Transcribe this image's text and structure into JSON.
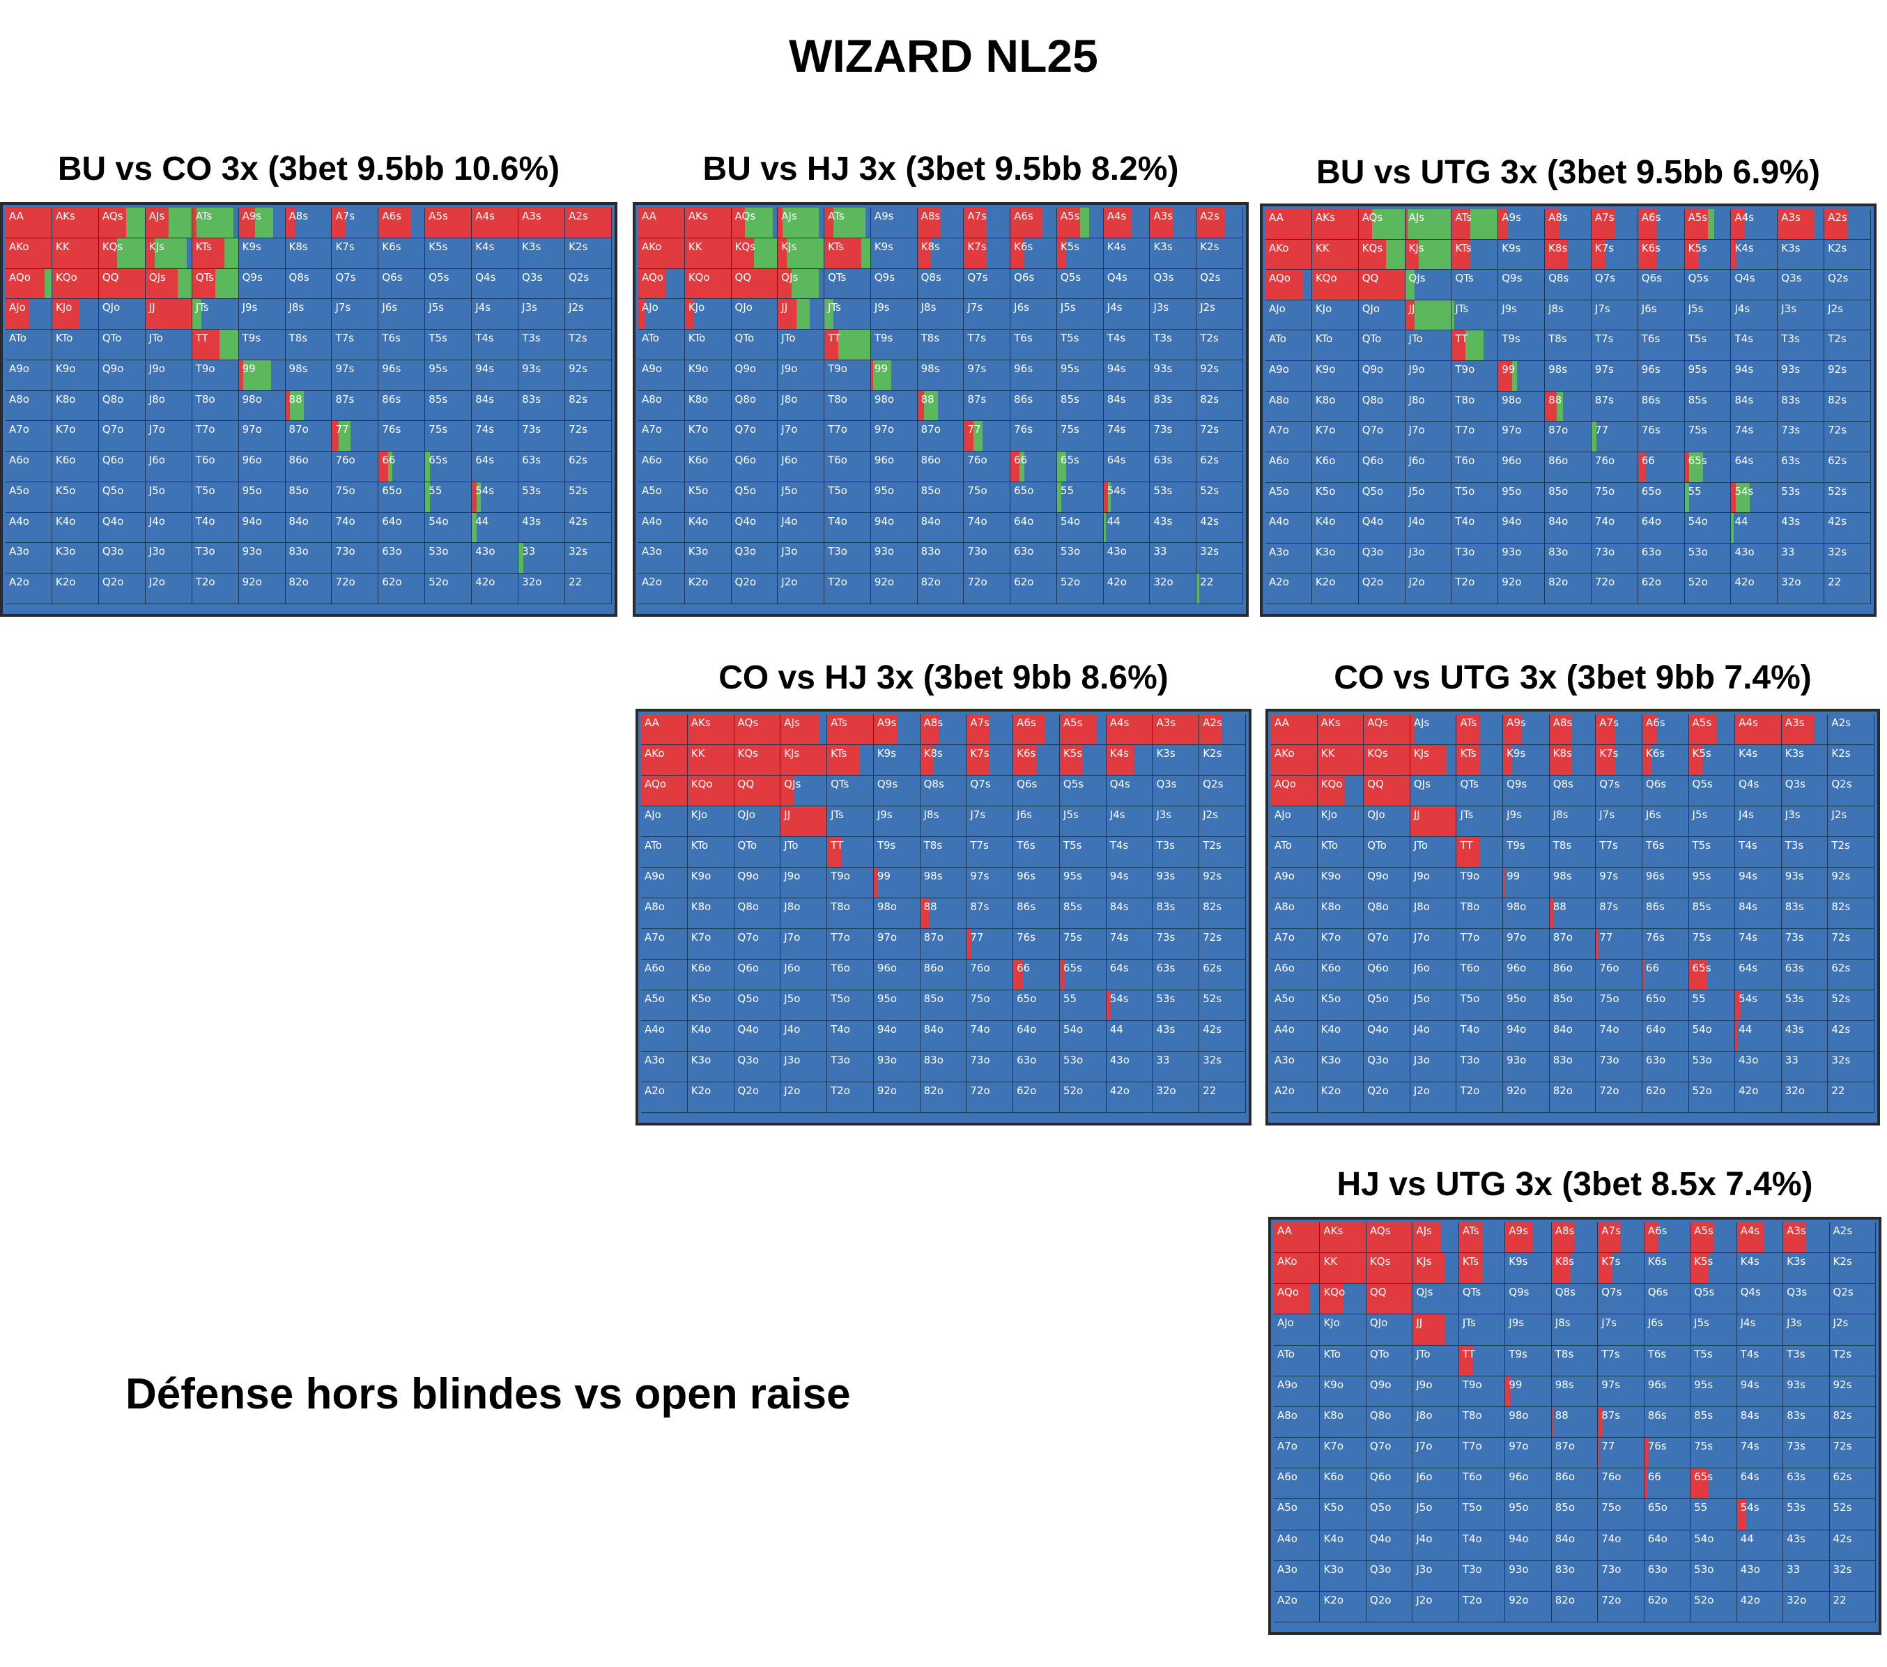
{
  "title": "WIZARD NL25",
  "subtitle": "Défense hors blindes vs open raise",
  "colors": {
    "raise": "#e23b3f",
    "call": "#5cb85c",
    "fold": "#3e74b5"
  },
  "ranks": [
    "A",
    "K",
    "Q",
    "J",
    "T",
    "9",
    "8",
    "7",
    "6",
    "5",
    "4",
    "3",
    "2"
  ],
  "panels": [
    {
      "id": "bu-vs-co",
      "title": "BU vs CO 3x (3bet 9.5bb 10.6%)",
      "actions": {
        "AA": [
          1,
          0
        ],
        "AKs": [
          1,
          0
        ],
        "AQs": [
          0.6,
          0.4
        ],
        "AJs": [
          0.5,
          0.5
        ],
        "ATs": [
          0.1,
          0.8
        ],
        "A9s": [
          0.35,
          0.4
        ],
        "A8s": [
          0.2,
          0
        ],
        "A7s": [
          0.3,
          0
        ],
        "A6s": [
          0.7,
          0
        ],
        "A5s": [
          1,
          0
        ],
        "A4s": [
          1,
          0
        ],
        "A3s": [
          1,
          0
        ],
        "A2s": [
          1,
          0
        ],
        "AKo": [
          1,
          0
        ],
        "KK": [
          1,
          0
        ],
        "KQs": [
          0.4,
          0.6
        ],
        "KJs": [
          0.2,
          0.7
        ],
        "KTs": [
          0.7,
          0.3
        ],
        "AQo": [
          0.85,
          0.15
        ],
        "KQo": [
          1,
          0
        ],
        "QQ": [
          1,
          0
        ],
        "QJs": [
          0.7,
          0.3
        ],
        "QTs": [
          0.5,
          0.5
        ],
        "AJo": [
          0.5,
          0
        ],
        "KJo": [
          0.6,
          0
        ],
        "JJ": [
          1,
          0
        ],
        "JTs": [
          0,
          0.2
        ],
        "TT": [
          0.6,
          0.4
        ],
        "99": [
          0.1,
          0.6
        ],
        "88": [
          0.1,
          0.3
        ],
        "77": [
          0.15,
          0.25
        ],
        "66": [
          0.2,
          0.1
        ],
        "65s": [
          0,
          0.1
        ],
        "55": [
          0,
          0.1
        ],
        "54s": [
          0.1,
          0.1
        ],
        "44": [
          0,
          0.1
        ],
        "33": [
          0,
          0.1
        ]
      }
    },
    {
      "id": "bu-vs-hj",
      "title": "BU vs HJ 3x (3bet 9.5bb 8.2%)",
      "actions": {
        "AA": [
          1,
          0
        ],
        "AKs": [
          1,
          0
        ],
        "AQs": [
          0.3,
          0.6
        ],
        "AJs": [
          0.1,
          0.8
        ],
        "ATs": [
          0.2,
          0.7
        ],
        "A9s": [
          0,
          0
        ],
        "A8s": [
          0.5,
          0
        ],
        "A7s": [
          0.5,
          0
        ],
        "A6s": [
          0.7,
          0
        ],
        "A5s": [
          0.5,
          0.2
        ],
        "A4s": [
          0.6,
          0
        ],
        "A3s": [
          0.5,
          0
        ],
        "A2s": [
          0.6,
          0
        ],
        "AKo": [
          1,
          0
        ],
        "KK": [
          1,
          0
        ],
        "KQs": [
          0.5,
          0.5
        ],
        "KJs": [
          0.2,
          0.8
        ],
        "KTs": [
          0.8,
          0.2
        ],
        "K8s": [
          0.3,
          0
        ],
        "K7s": [
          0.5,
          0
        ],
        "K6s": [
          0.3,
          0
        ],
        "K5s": [
          0.2,
          0
        ],
        "AQo": [
          0.6,
          0
        ],
        "KQo": [
          1,
          0
        ],
        "QQ": [
          1,
          0
        ],
        "QJs": [
          0.3,
          0.6
        ],
        "AJo": [
          0.15,
          0
        ],
        "KJo": [
          0.2,
          0
        ],
        "JJ": [
          0.4,
          0.3
        ],
        "JTs": [
          0,
          0.2
        ],
        "TT": [
          0.3,
          0.7
        ],
        "99": [
          0.05,
          0.4
        ],
        "88": [
          0.15,
          0.3
        ],
        "77": [
          0.2,
          0.2
        ],
        "66": [
          0.2,
          0.1
        ],
        "65s": [
          0,
          0.2
        ],
        "55": [
          0,
          0.1
        ],
        "54s": [
          0.1,
          0.05
        ],
        "44": [
          0,
          0.05
        ],
        "22": [
          0,
          0.05
        ]
      }
    },
    {
      "id": "bu-vs-utg",
      "title": "BU vs UTG 3x (3bet 9.5bb 6.9%)",
      "actions": {
        "AA": [
          1,
          0
        ],
        "AKs": [
          1,
          0
        ],
        "AQs": [
          0.3,
          0.7
        ],
        "AJs": [
          0.05,
          0.95
        ],
        "ATs": [
          0.4,
          0.6
        ],
        "A9s": [
          0.2,
          0
        ],
        "A8s": [
          0.3,
          0
        ],
        "A7s": [
          0.5,
          0
        ],
        "A6s": [
          0.4,
          0
        ],
        "A5s": [
          0.5,
          0.15
        ],
        "A4s": [
          0.3,
          0
        ],
        "A3s": [
          0.8,
          0
        ],
        "A2s": [
          0.5,
          0
        ],
        "AKo": [
          1,
          0
        ],
        "KK": [
          1,
          0
        ],
        "KQs": [
          0.6,
          0.4
        ],
        "KJs": [
          0.3,
          0.7
        ],
        "KTs": [
          0.4,
          0
        ],
        "K8s": [
          0.5,
          0
        ],
        "K7s": [
          0.3,
          0
        ],
        "K6s": [
          0.4,
          0
        ],
        "K5s": [
          0.3,
          0
        ],
        "K4s": [
          0.1,
          0
        ],
        "AQo": [
          0.8,
          0
        ],
        "KQo": [
          1,
          0
        ],
        "QQ": [
          1,
          0
        ],
        "QJs": [
          0,
          0.2
        ],
        "JJ": [
          0.2,
          0.8
        ],
        "JTs": [
          0,
          0.05
        ],
        "TT": [
          0.3,
          0.4
        ],
        "99": [
          0.3,
          0.1
        ],
        "88": [
          0.25,
          0.15
        ],
        "77": [
          0,
          0.1
        ],
        "66": [
          0.15,
          0
        ],
        "65s": [
          0.1,
          0.3
        ],
        "55": [
          0,
          0.1
        ],
        "54s": [
          0.1,
          0.3
        ],
        "44": [
          0,
          0.05
        ]
      }
    },
    {
      "id": "co-vs-hj",
      "title": "CO vs HJ 3x (3bet 9bb 8.6%)",
      "actions": {
        "AA": [
          1,
          0
        ],
        "AKs": [
          1,
          0
        ],
        "AQs": [
          1,
          0
        ],
        "AJs": [
          0.85,
          0
        ],
        "ATs": [
          1,
          0
        ],
        "A9s": [
          0.5,
          0
        ],
        "A8s": [
          0.4,
          0
        ],
        "A7s": [
          0.5,
          0
        ],
        "A6s": [
          0.7,
          0
        ],
        "A5s": [
          0.8,
          0
        ],
        "A4s": [
          1,
          0
        ],
        "A3s": [
          1,
          0
        ],
        "A2s": [
          0.5,
          0
        ],
        "AKo": [
          1,
          0
        ],
        "KK": [
          1,
          0
        ],
        "KQs": [
          1,
          0
        ],
        "KJs": [
          1,
          0
        ],
        "KTs": [
          0.7,
          0
        ],
        "K8s": [
          0.3,
          0
        ],
        "K7s": [
          0.5,
          0
        ],
        "K6s": [
          0.5,
          0
        ],
        "K5s": [
          0.5,
          0
        ],
        "K4s": [
          0.6,
          0
        ],
        "AQo": [
          1,
          0
        ],
        "KQo": [
          1,
          0
        ],
        "QQ": [
          1,
          0
        ],
        "QJs": [
          0.3,
          0
        ],
        "JJ": [
          1,
          0
        ],
        "TT": [
          0.3,
          0
        ],
        "99": [
          0.1,
          0
        ],
        "88": [
          0.2,
          0
        ],
        "77": [
          0.1,
          0
        ],
        "66": [
          0.2,
          0
        ],
        "65s": [
          0.1,
          0
        ],
        "54s": [
          0.1,
          0
        ]
      }
    },
    {
      "id": "co-vs-utg",
      "title": "CO vs UTG 3x (3bet 9bb 7.4%)",
      "actions": {
        "AA": [
          1,
          0
        ],
        "AKs": [
          1,
          0
        ],
        "AQs": [
          1,
          0
        ],
        "AJs": [
          0.1,
          0
        ],
        "ATs": [
          0.5,
          0
        ],
        "A9s": [
          0.4,
          0
        ],
        "A8s": [
          0.5,
          0
        ],
        "A7s": [
          0.4,
          0
        ],
        "A6s": [
          0.3,
          0
        ],
        "A5s": [
          0.6,
          0
        ],
        "A4s": [
          1,
          0
        ],
        "A3s": [
          0.7,
          0
        ],
        "AKo": [
          1,
          0
        ],
        "KK": [
          1,
          0
        ],
        "KQs": [
          1,
          0
        ],
        "KJs": [
          0.8,
          0
        ],
        "KTs": [
          0.5,
          0
        ],
        "K9s": [
          0.2,
          0
        ],
        "K8s": [
          0.5,
          0
        ],
        "K7s": [
          0.4,
          0
        ],
        "K6s": [
          0.2,
          0
        ],
        "K5s": [
          0.3,
          0
        ],
        "AQo": [
          1,
          0
        ],
        "KQo": [
          0.6,
          0
        ],
        "QQ": [
          1,
          0
        ],
        "JJ": [
          1,
          0
        ],
        "TT": [
          0.5,
          0
        ],
        "99": [
          0.05,
          0
        ],
        "88": [
          0.1,
          0
        ],
        "77": [
          0.05,
          0
        ],
        "66": [
          0.05,
          0
        ],
        "65s": [
          0.4,
          0
        ],
        "54s": [
          0.1,
          0
        ],
        "44": [
          0.05,
          0
        ]
      }
    },
    {
      "id": "hj-vs-utg",
      "title": "HJ vs UTG 3x (3bet 8.5x 7.4%)",
      "actions": {
        "AA": [
          1,
          0
        ],
        "AKs": [
          1,
          0
        ],
        "AQs": [
          1,
          0
        ],
        "AJs": [
          0.6,
          0
        ],
        "ATs": [
          0.5,
          0
        ],
        "A9s": [
          0.6,
          0
        ],
        "A8s": [
          0.5,
          0
        ],
        "A7s": [
          0.5,
          0
        ],
        "A6s": [
          0.3,
          0
        ],
        "A5s": [
          0.5,
          0
        ],
        "A4s": [
          0.6,
          0
        ],
        "A3s": [
          0.5,
          0
        ],
        "AKo": [
          1,
          0
        ],
        "KK": [
          1,
          0
        ],
        "KQs": [
          1,
          0
        ],
        "KJs": [
          0.7,
          0
        ],
        "KTs": [
          0.5,
          0
        ],
        "K8s": [
          0.4,
          0
        ],
        "K7s": [
          0.3,
          0
        ],
        "K5s": [
          0.4,
          0
        ],
        "AQo": [
          0.8,
          0
        ],
        "KQo": [
          0.5,
          0
        ],
        "QQ": [
          1,
          0
        ],
        "JJ": [
          0.7,
          0
        ],
        "TT": [
          0.3,
          0
        ],
        "99": [
          0.1,
          0
        ],
        "88": [
          0.05,
          0
        ],
        "87s": [
          0.1,
          0
        ],
        "77": [
          0.05,
          0
        ],
        "76s": [
          0.1,
          0
        ],
        "66": [
          0.05,
          0
        ],
        "65s": [
          0.4,
          0
        ],
        "54s": [
          0.2,
          0
        ]
      }
    }
  ]
}
